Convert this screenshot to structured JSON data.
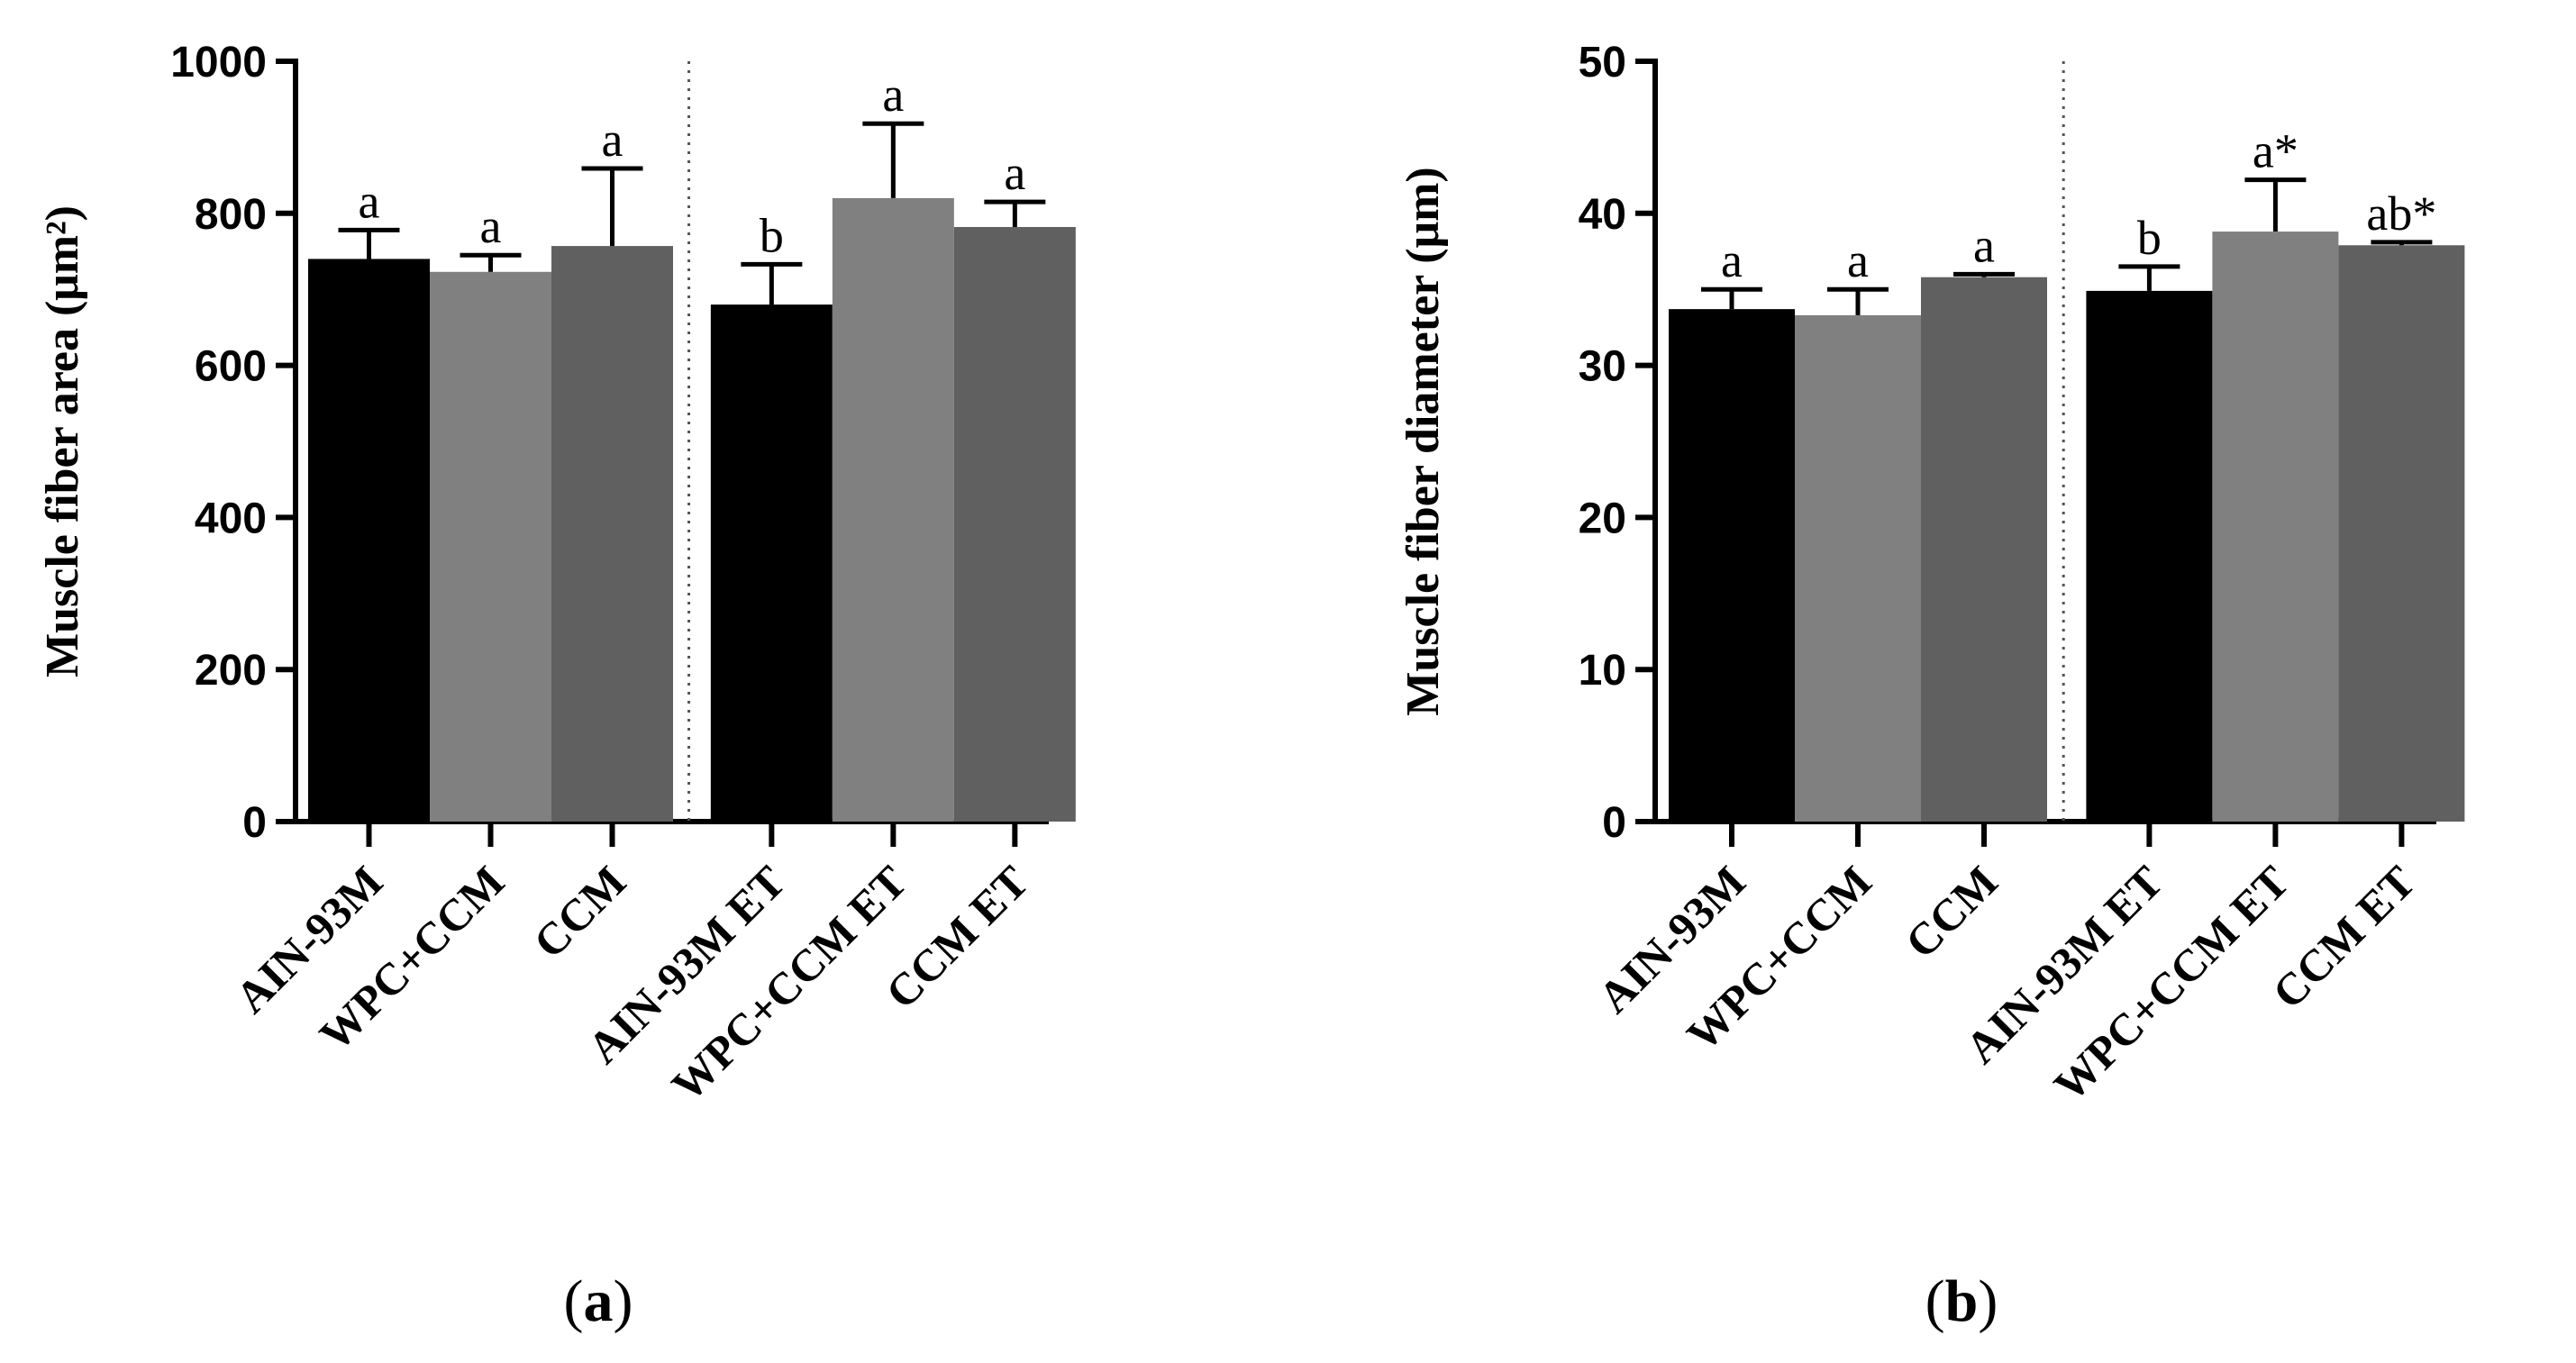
{
  "chart_data": [
    {
      "type": "bar",
      "panel_label": "a",
      "ylabel": "Muscle fiber area (μm²)",
      "xlabel": "",
      "ylim": [
        0,
        1000
      ],
      "yticks": [
        0,
        200,
        400,
        600,
        800,
        1000
      ],
      "ytick_labels": [
        "0",
        "200",
        "400",
        "600",
        "800",
        "1000"
      ],
      "categories": [
        "AIN-93M",
        "WPC+CCM",
        "CCM",
        "AIN-93M ET",
        "WPC+CCM ET",
        "CCM ET"
      ],
      "values": [
        740,
        723,
        757,
        680,
        820,
        782
      ],
      "errors": [
        38,
        22,
        102,
        53,
        98,
        33
      ],
      "significance": [
        "a",
        "a",
        "a",
        "b",
        "a",
        "a"
      ],
      "colors": [
        "#000000",
        "#808080",
        "#606060",
        "#000000",
        "#808080",
        "#606060"
      ],
      "group_divider_after_index": 2
    },
    {
      "type": "bar",
      "panel_label": "b",
      "ylabel": "Muscle fiber diameter (μm)",
      "xlabel": "",
      "ylim": [
        0,
        50
      ],
      "yticks": [
        0,
        10,
        20,
        30,
        40,
        50
      ],
      "ytick_labels": [
        "0",
        "10",
        "20",
        "30",
        "40",
        "50"
      ],
      "categories": [
        "AIN-93M",
        "WPC+CCM",
        "CCM",
        "AIN-93M ET",
        "WPC+CCM ET",
        "CCM ET"
      ],
      "values": [
        33.7,
        33.3,
        35.8,
        34.9,
        38.8,
        37.9
      ],
      "errors": [
        1.3,
        1.7,
        0.2,
        1.6,
        3.4,
        0.2
      ],
      "significance": [
        "a",
        "a",
        "a",
        "b",
        "a*",
        "ab*"
      ],
      "colors": [
        "#000000",
        "#808080",
        "#606060",
        "#000000",
        "#808080",
        "#606060"
      ],
      "group_divider_after_index": 2
    }
  ]
}
